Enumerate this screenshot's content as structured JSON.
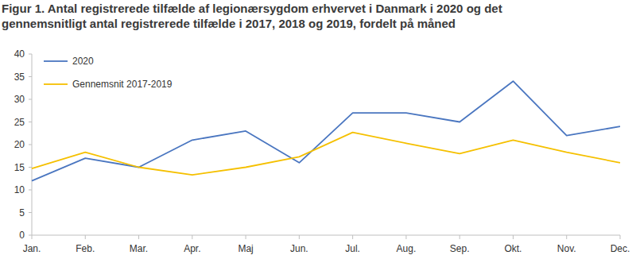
{
  "chart_data": {
    "type": "line",
    "title": "Figur 1. Antal registrerede tilfælde af legionærsygdom erhvervet i Danmark i 2020 og det gennemsnitligt antal registrerede tilfælde i 2017, 2018 og 2019, fordelt på måned",
    "categories": [
      "Jan.",
      "Feb.",
      "Mar.",
      "Apr.",
      "Maj",
      "Jun.",
      "Jul.",
      "Aug.",
      "Sep.",
      "Okt.",
      "Nov.",
      "Dec."
    ],
    "series": [
      {
        "name": "2020",
        "color": "#4a76c0",
        "values": [
          12,
          17,
          15,
          21,
          23,
          16,
          27,
          27,
          25,
          34,
          22,
          24
        ]
      },
      {
        "name": "Gennemsnit 2017-2019",
        "color": "#f5c000",
        "values": [
          14.7,
          18.3,
          15,
          13.3,
          15,
          17.3,
          22.7,
          20.3,
          18,
          21,
          18.3,
          16
        ]
      }
    ],
    "ylim": [
      0,
      40
    ],
    "yticks": [
      0,
      5,
      10,
      15,
      20,
      25,
      30,
      35,
      40
    ],
    "grid": false,
    "legend": "top-left"
  }
}
